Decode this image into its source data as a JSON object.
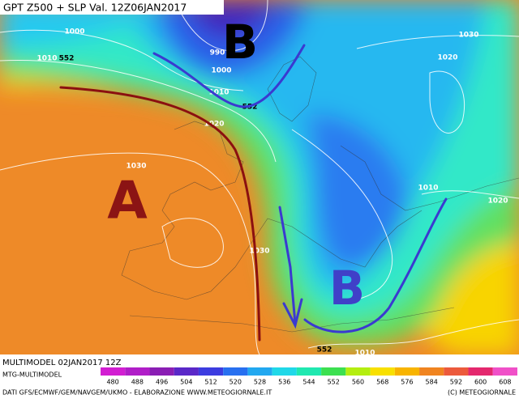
{
  "header": {
    "title": "GPT Z500 + SLP Val. 12Z06JAN2017"
  },
  "map": {
    "pressure_centers": [
      "B",
      "A",
      "B"
    ],
    "contour_labels": [
      "1000",
      "1010",
      "552",
      "990",
      "1000",
      "1010",
      "552",
      "1020",
      "1030",
      "1030",
      "1020",
      "1010",
      "1020",
      "1030",
      "552",
      "1010"
    ]
  },
  "footer": {
    "run": "MULTIMODEL 02JAN2017 12Z",
    "model": "MTG-MULTIMODEL",
    "credits": "DATI GFS/ECMWF/GEM/NAVGEM/UKMO - ELABORAZIONE WWW.METEOGIORNALE.IT",
    "copyright": "(C) METEOGIORNALE"
  },
  "legend": {
    "labels": [
      480,
      488,
      496,
      504,
      512,
      520,
      528,
      536,
      544,
      552,
      560,
      568,
      576,
      584,
      592,
      600,
      608
    ],
    "colors": [
      "#d21ed2",
      "#b01ec8",
      "#8a1eb4",
      "#5a28c8",
      "#3c3ce0",
      "#2870f0",
      "#22a8f0",
      "#20d8e8",
      "#20e8b0",
      "#3ce050",
      "#b4ee10",
      "#f8e000",
      "#f8b400",
      "#f08420",
      "#ec5a3c",
      "#e4286e",
      "#f050c8"
    ]
  }
}
